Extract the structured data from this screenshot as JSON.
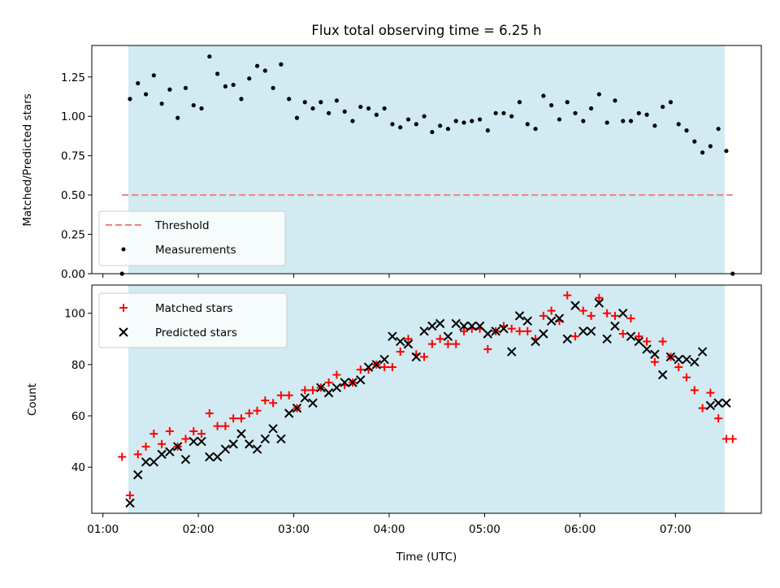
{
  "chart_data": [
    {
      "type": "scatter",
      "title": "Flux total observing time = 6.25 h",
      "xlabel": "",
      "ylabel": "Matched/Predicted stars",
      "xlim": [
        "00:53",
        "07:54"
      ],
      "ylim": [
        0,
        1.45
      ],
      "x_ticks": [
        "01:00",
        "02:00",
        "03:00",
        "04:00",
        "05:00",
        "06:00",
        "07:00"
      ],
      "y_ticks": [
        "0.00",
        "0.25",
        "0.50",
        "0.75",
        "1.00",
        "1.25"
      ],
      "y_tick_values": [
        0,
        0.25,
        0.5,
        0.75,
        1.0,
        1.25
      ],
      "shaded_span": [
        "01:16",
        "07:31"
      ],
      "shade_color": "#add8e6",
      "legend_position": "lower left",
      "threshold": {
        "name": "Threshold",
        "value": 0.5,
        "x_range": [
          "01:12",
          "07:36"
        ],
        "color": "#f08080",
        "style": "dashed"
      },
      "series": [
        {
          "name": "Measurements",
          "color": "#000000",
          "marker": "dot",
          "x": [
            "01:12",
            "01:17",
            "01:22",
            "01:27",
            "01:32",
            "01:37",
            "01:42",
            "01:47",
            "01:52",
            "01:57",
            "02:02",
            "02:07",
            "02:12",
            "02:17",
            "02:22",
            "02:27",
            "02:32",
            "02:37",
            "02:42",
            "02:47",
            "02:52",
            "02:57",
            "03:02",
            "03:07",
            "03:12",
            "03:17",
            "03:22",
            "03:27",
            "03:32",
            "03:37",
            "03:42",
            "03:47",
            "03:52",
            "03:57",
            "04:02",
            "04:07",
            "04:12",
            "04:17",
            "04:22",
            "04:27",
            "04:32",
            "04:37",
            "04:42",
            "04:47",
            "04:52",
            "04:57",
            "05:02",
            "05:07",
            "05:12",
            "05:17",
            "05:22",
            "05:27",
            "05:32",
            "05:37",
            "05:42",
            "05:47",
            "05:52",
            "05:57",
            "06:02",
            "06:07",
            "06:12",
            "06:17",
            "06:22",
            "06:27",
            "06:32",
            "06:37",
            "06:42",
            "06:47",
            "06:52",
            "06:57",
            "07:02",
            "07:07",
            "07:12",
            "07:17",
            "07:22",
            "07:27",
            "07:32",
            "07:36"
          ],
          "y": [
            0.0,
            1.11,
            1.21,
            1.14,
            1.26,
            1.08,
            1.17,
            0.99,
            1.18,
            1.07,
            1.05,
            1.38,
            1.27,
            1.19,
            1.2,
            1.11,
            1.24,
            1.32,
            1.29,
            1.18,
            1.33,
            1.11,
            0.99,
            1.09,
            1.05,
            1.09,
            1.02,
            1.1,
            1.03,
            0.97,
            1.06,
            1.05,
            1.01,
            1.05,
            0.95,
            0.93,
            0.98,
            0.95,
            1.0,
            0.9,
            0.94,
            0.92,
            0.97,
            0.96,
            0.97,
            0.98,
            0.91,
            1.02,
            1.02,
            1.0,
            1.09,
            0.95,
            0.92,
            1.13,
            1.07,
            0.98,
            1.09,
            1.02,
            0.97,
            1.05,
            1.14,
            0.96,
            1.1,
            0.97,
            0.97,
            1.02,
            1.01,
            0.94,
            1.06,
            1.09,
            0.95,
            0.91,
            0.84,
            0.77,
            0.81,
            0.92,
            0.78,
            0.0
          ]
        }
      ]
    },
    {
      "type": "scatter",
      "title": "",
      "xlabel": "Time (UTC)",
      "ylabel": "Count",
      "xlim": [
        "00:53",
        "07:54"
      ],
      "ylim": [
        22,
        111
      ],
      "x_ticks": [
        "01:00",
        "02:00",
        "03:00",
        "04:00",
        "05:00",
        "06:00",
        "07:00"
      ],
      "y_ticks": [
        "40",
        "60",
        "80",
        "100"
      ],
      "y_tick_values": [
        40,
        60,
        80,
        100
      ],
      "shaded_span": [
        "01:16",
        "07:31"
      ],
      "shade_color": "#add8e6",
      "legend_position": "upper left",
      "series": [
        {
          "name": "Matched stars",
          "color": "#ff0000",
          "marker": "plus",
          "x": [
            "01:12",
            "01:17",
            "01:22",
            "01:27",
            "01:32",
            "01:37",
            "01:42",
            "01:47",
            "01:52",
            "01:57",
            "02:02",
            "02:07",
            "02:12",
            "02:17",
            "02:22",
            "02:27",
            "02:32",
            "02:37",
            "02:42",
            "02:47",
            "02:52",
            "02:57",
            "03:02",
            "03:07",
            "03:12",
            "03:17",
            "03:22",
            "03:27",
            "03:32",
            "03:37",
            "03:42",
            "03:47",
            "03:52",
            "03:57",
            "04:02",
            "04:07",
            "04:12",
            "04:17",
            "04:22",
            "04:27",
            "04:32",
            "04:37",
            "04:42",
            "04:47",
            "04:52",
            "04:57",
            "05:02",
            "05:07",
            "05:12",
            "05:17",
            "05:22",
            "05:27",
            "05:32",
            "05:37",
            "05:42",
            "05:47",
            "05:52",
            "05:57",
            "06:02",
            "06:07",
            "06:12",
            "06:17",
            "06:22",
            "06:27",
            "06:32",
            "06:37",
            "06:42",
            "06:47",
            "06:52",
            "06:57",
            "07:02",
            "07:07",
            "07:12",
            "07:17",
            "07:22",
            "07:27",
            "07:32",
            "07:36"
          ],
          "y": [
            44,
            29,
            45,
            48,
            53,
            49,
            54,
            48,
            51,
            54,
            53,
            61,
            56,
            56,
            59,
            59,
            61,
            62,
            66,
            65,
            68,
            68,
            63,
            70,
            70,
            71,
            73,
            76,
            72,
            73,
            78,
            78,
            80,
            79,
            79,
            85,
            90,
            84,
            83,
            88,
            90,
            88,
            88,
            93,
            94,
            94,
            86,
            93,
            95,
            94,
            93,
            93,
            90,
            99,
            101,
            97,
            107,
            91,
            101,
            99,
            106,
            100,
            99,
            92,
            98,
            91,
            89,
            81,
            89,
            83,
            79,
            75,
            70,
            63,
            69,
            59,
            51,
            51
          ]
        },
        {
          "name": "Predicted stars",
          "color": "#000000",
          "marker": "x",
          "x": [
            "01:17",
            "01:22",
            "01:27",
            "01:32",
            "01:37",
            "01:42",
            "01:47",
            "01:52",
            "01:57",
            "02:02",
            "02:07",
            "02:12",
            "02:17",
            "02:22",
            "02:27",
            "02:32",
            "02:37",
            "02:42",
            "02:47",
            "02:52",
            "02:57",
            "03:02",
            "03:07",
            "03:12",
            "03:17",
            "03:22",
            "03:27",
            "03:32",
            "03:37",
            "03:42",
            "03:47",
            "03:52",
            "03:57",
            "04:02",
            "04:07",
            "04:12",
            "04:17",
            "04:22",
            "04:27",
            "04:32",
            "04:37",
            "04:42",
            "04:47",
            "04:52",
            "04:57",
            "05:02",
            "05:07",
            "05:12",
            "05:17",
            "05:22",
            "05:27",
            "05:32",
            "05:37",
            "05:42",
            "05:47",
            "05:52",
            "05:57",
            "06:02",
            "06:07",
            "06:12",
            "06:17",
            "06:22",
            "06:27",
            "06:32",
            "06:37",
            "06:42",
            "06:47",
            "06:52",
            "06:57",
            "07:02",
            "07:07",
            "07:12",
            "07:17",
            "07:22",
            "07:27",
            "07:32"
          ],
          "y": [
            26,
            37,
            42,
            42,
            45,
            46,
            48,
            43,
            50,
            50,
            44,
            44,
            47,
            49,
            53,
            49,
            47,
            51,
            55,
            51,
            61,
            63,
            67,
            65,
            71,
            69,
            71,
            73,
            73,
            74,
            79,
            80,
            82,
            91,
            89,
            88,
            83,
            93,
            95,
            96,
            91,
            96,
            95,
            95,
            95,
            92,
            93,
            94,
            85,
            99,
            97,
            89,
            92,
            97,
            98,
            90,
            103,
            93,
            93,
            104,
            90,
            95,
            100,
            91,
            89,
            86,
            84,
            76,
            83,
            82,
            82,
            81,
            85,
            64,
            65,
            65
          ]
        }
      ]
    }
  ]
}
